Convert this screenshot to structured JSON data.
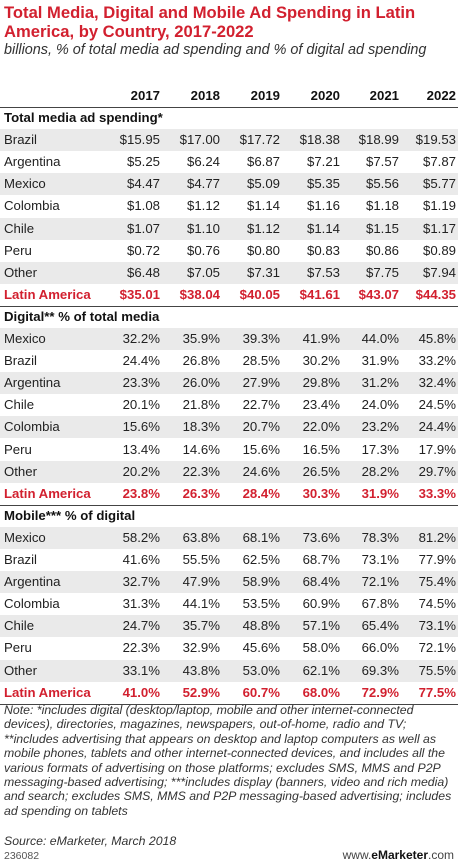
{
  "chart_data": {
    "type": "table",
    "title": "Total Media, Digital and Mobile Ad Spending in Latin America, by Country, 2017-2022",
    "subtitle": "billions, % of total media ad spending and % of digital ad spending",
    "columns": [
      "2017",
      "2018",
      "2019",
      "2020",
      "2021",
      "2022"
    ],
    "sections": [
      {
        "heading": "Total media ad spending*",
        "rows": [
          {
            "label": "Brazil",
            "values": [
              "$15.95",
              "$17.00",
              "$17.72",
              "$18.38",
              "$18.99",
              "$19.53"
            ]
          },
          {
            "label": "Argentina",
            "values": [
              "$5.25",
              "$6.24",
              "$6.87",
              "$7.21",
              "$7.57",
              "$7.87"
            ]
          },
          {
            "label": "Mexico",
            "values": [
              "$4.47",
              "$4.77",
              "$5.09",
              "$5.35",
              "$5.56",
              "$5.77"
            ]
          },
          {
            "label": "Colombia",
            "values": [
              "$1.08",
              "$1.12",
              "$1.14",
              "$1.16",
              "$1.18",
              "$1.19"
            ]
          },
          {
            "label": "Chile",
            "values": [
              "$1.07",
              "$1.10",
              "$1.12",
              "$1.14",
              "$1.15",
              "$1.17"
            ]
          },
          {
            "label": "Peru",
            "values": [
              "$0.72",
              "$0.76",
              "$0.80",
              "$0.83",
              "$0.86",
              "$0.89"
            ]
          },
          {
            "label": "Other",
            "values": [
              "$6.48",
              "$7.05",
              "$7.31",
              "$7.53",
              "$7.75",
              "$7.94"
            ]
          },
          {
            "label": "Latin America",
            "values": [
              "$35.01",
              "$38.04",
              "$40.05",
              "$41.61",
              "$43.07",
              "$44.35"
            ],
            "total": true
          }
        ]
      },
      {
        "heading": "Digital** % of total media",
        "rows": [
          {
            "label": "Mexico",
            "values": [
              "32.2%",
              "35.9%",
              "39.3%",
              "41.9%",
              "44.0%",
              "45.8%"
            ]
          },
          {
            "label": "Brazil",
            "values": [
              "24.4%",
              "26.8%",
              "28.5%",
              "30.2%",
              "31.9%",
              "33.2%"
            ]
          },
          {
            "label": "Argentina",
            "values": [
              "23.3%",
              "26.0%",
              "27.9%",
              "29.8%",
              "31.2%",
              "32.4%"
            ]
          },
          {
            "label": "Chile",
            "values": [
              "20.1%",
              "21.8%",
              "22.7%",
              "23.4%",
              "24.0%",
              "24.5%"
            ]
          },
          {
            "label": "Colombia",
            "values": [
              "15.6%",
              "18.3%",
              "20.7%",
              "22.0%",
              "23.2%",
              "24.4%"
            ]
          },
          {
            "label": "Peru",
            "values": [
              "13.4%",
              "14.6%",
              "15.6%",
              "16.5%",
              "17.3%",
              "17.9%"
            ]
          },
          {
            "label": "Other",
            "values": [
              "20.2%",
              "22.3%",
              "24.6%",
              "26.5%",
              "28.2%",
              "29.7%"
            ]
          },
          {
            "label": "Latin America",
            "values": [
              "23.8%",
              "26.3%",
              "28.4%",
              "30.3%",
              "31.9%",
              "33.3%"
            ],
            "total": true
          }
        ]
      },
      {
        "heading": "Mobile*** % of digital",
        "rows": [
          {
            "label": "Mexico",
            "values": [
              "58.2%",
              "63.8%",
              "68.1%",
              "73.6%",
              "78.3%",
              "81.2%"
            ]
          },
          {
            "label": "Brazil",
            "values": [
              "41.6%",
              "55.5%",
              "62.5%",
              "68.7%",
              "73.1%",
              "77.9%"
            ]
          },
          {
            "label": "Argentina",
            "values": [
              "32.7%",
              "47.9%",
              "58.9%",
              "68.4%",
              "72.1%",
              "75.4%"
            ]
          },
          {
            "label": "Colombia",
            "values": [
              "31.3%",
              "44.1%",
              "53.5%",
              "60.9%",
              "67.8%",
              "74.5%"
            ]
          },
          {
            "label": "Chile",
            "values": [
              "24.7%",
              "35.7%",
              "48.8%",
              "57.1%",
              "65.4%",
              "73.1%"
            ]
          },
          {
            "label": "Peru",
            "values": [
              "22.3%",
              "32.9%",
              "45.6%",
              "58.0%",
              "66.0%",
              "72.1%"
            ]
          },
          {
            "label": "Other",
            "values": [
              "33.1%",
              "43.8%",
              "53.0%",
              "62.1%",
              "69.3%",
              "75.5%"
            ]
          },
          {
            "label": "Latin America",
            "values": [
              "41.0%",
              "52.9%",
              "60.7%",
              "68.0%",
              "72.9%",
              "77.5%"
            ],
            "total": true
          }
        ]
      }
    ]
  },
  "note": "Note: *includes digital (desktop/laptop, mobile and other internet-connected devices), directories, magazines, newspapers, out-of-home, radio and TV; **includes advertising that appears on desktop and laptop computers as well as mobile phones, tablets and other internet-connected devices, and includes all the various formats of advertising on those platforms; excludes SMS, MMS and P2P messaging-based advertising; ***includes display (banners, video and rich media) and search; excludes SMS, MMS and P2P messaging-based advertising; includes ad spending on tablets",
  "source": "Source: eMarketer, March 2018",
  "chart_id": "236082",
  "brand": {
    "prefix": "www.",
    "name": "eMarketer",
    "suffix": ".com"
  },
  "colors": {
    "accent": "#d2202f",
    "shade": "#eaeaea"
  }
}
